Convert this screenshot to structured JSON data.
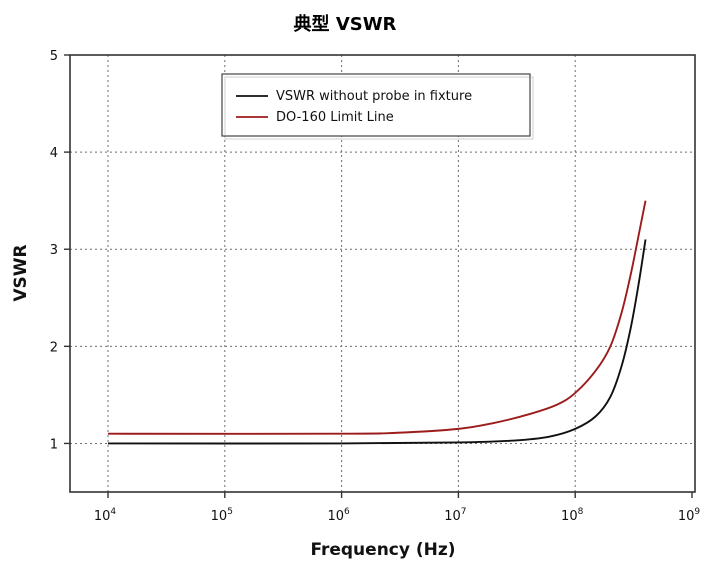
{
  "chart_data": {
    "type": "line",
    "title": "典型 VSWR",
    "xlabel": "Frequency (Hz)",
    "ylabel": "VSWR",
    "x_scale": "log",
    "xlim": [
      10000,
      1000000000
    ],
    "ylim": [
      0.5,
      5
    ],
    "x_ticks": [
      {
        "value": 10000,
        "base": "10",
        "exp": "4"
      },
      {
        "value": 100000,
        "base": "10",
        "exp": "5"
      },
      {
        "value": 1000000,
        "base": "10",
        "exp": "6"
      },
      {
        "value": 10000000,
        "base": "10",
        "exp": "7"
      },
      {
        "value": 100000000,
        "base": "10",
        "exp": "8"
      },
      {
        "value": 1000000000,
        "base": "10",
        "exp": "9"
      }
    ],
    "y_ticks": [
      "1",
      "2",
      "3",
      "4",
      "5"
    ],
    "grid": true,
    "legend_position": "top-center",
    "series": [
      {
        "name": "VSWR without probe in fixture",
        "color": "#111111",
        "x": [
          10000,
          1000000,
          10000000,
          30000000,
          60000000,
          100000000,
          150000000,
          200000000,
          250000000,
          300000000,
          350000000,
          400000000
        ],
        "y": [
          1.0,
          1.0,
          1.01,
          1.03,
          1.07,
          1.15,
          1.28,
          1.48,
          1.8,
          2.2,
          2.65,
          3.1
        ]
      },
      {
        "name": "DO-160 Limit Line",
        "color": "#9c1c1c",
        "x": [
          10000,
          1000000,
          3000000,
          10000000,
          20000000,
          40000000,
          70000000,
          100000000,
          150000000,
          200000000,
          250000000,
          300000000,
          350000000,
          400000000
        ],
        "y": [
          1.1,
          1.1,
          1.11,
          1.15,
          1.21,
          1.3,
          1.4,
          1.52,
          1.75,
          2.0,
          2.35,
          2.75,
          3.15,
          3.5
        ]
      }
    ]
  }
}
